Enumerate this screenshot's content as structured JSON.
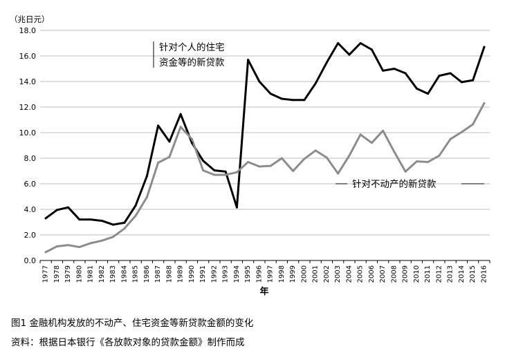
{
  "chart_data": {
    "type": "line",
    "unit_label": "（兆日元）",
    "xlabel": "年",
    "ylim": [
      0,
      18
    ],
    "yticks": [
      "0.0",
      "2.0",
      "4.0",
      "6.0",
      "8.0",
      "10.0",
      "12.0",
      "14.0",
      "16.0",
      "18.0"
    ],
    "grid": "horizontal",
    "x": [
      "1977",
      "1978",
      "1979",
      "1980",
      "1981",
      "1982",
      "1983",
      "1984",
      "1985",
      "1986",
      "1987",
      "1988",
      "1989",
      "1990",
      "1991",
      "1992",
      "1993",
      "1994",
      "1995",
      "1996",
      "1997",
      "1998",
      "1999",
      "2000",
      "2001",
      "2002",
      "2003",
      "2004",
      "2005",
      "2006",
      "2007",
      "2008",
      "2009",
      "2010",
      "2011",
      "2012",
      "2013",
      "2014",
      "2015",
      "2016"
    ],
    "series": [
      {
        "name": "针对个人的住宅资金等的新贷款",
        "label_lines": [
          "针对个人的住宅",
          "资金等的新贷款"
        ],
        "color": "#000000",
        "values": [
          3.3,
          3.95,
          4.15,
          3.2,
          3.2,
          3.1,
          2.8,
          2.95,
          4.3,
          6.6,
          10.55,
          9.3,
          11.45,
          9.2,
          7.8,
          7.05,
          6.95,
          4.15,
          15.7,
          14.0,
          13.05,
          12.65,
          12.55,
          12.55,
          13.85,
          15.5,
          17.0,
          16.1,
          17.0,
          16.5,
          14.85,
          15.0,
          14.65,
          13.45,
          13.05,
          14.45,
          14.65,
          13.95,
          14.1,
          16.7
        ]
      },
      {
        "name": "针对不动产的新贷款",
        "label_lines": [
          "针对不动产的新贷款"
        ],
        "color": "#8c8c8c",
        "values": [
          0.65,
          1.1,
          1.2,
          1.05,
          1.35,
          1.55,
          1.85,
          2.5,
          3.5,
          4.95,
          7.65,
          8.1,
          10.45,
          9.5,
          7.05,
          6.7,
          6.7,
          6.9,
          7.7,
          7.35,
          7.4,
          8.0,
          7.0,
          7.95,
          8.6,
          8.05,
          6.8,
          8.2,
          9.85,
          9.2,
          10.15,
          8.5,
          6.95,
          7.75,
          7.7,
          8.2,
          9.5,
          10.05,
          10.65,
          12.3
        ]
      }
    ]
  },
  "captions": {
    "figure": "图1 金融机构发放的不动产、住宅资金等新贷款金额的变化",
    "source": "资料：根据日本银行《各放款对象的贷款金额》制作而成"
  }
}
